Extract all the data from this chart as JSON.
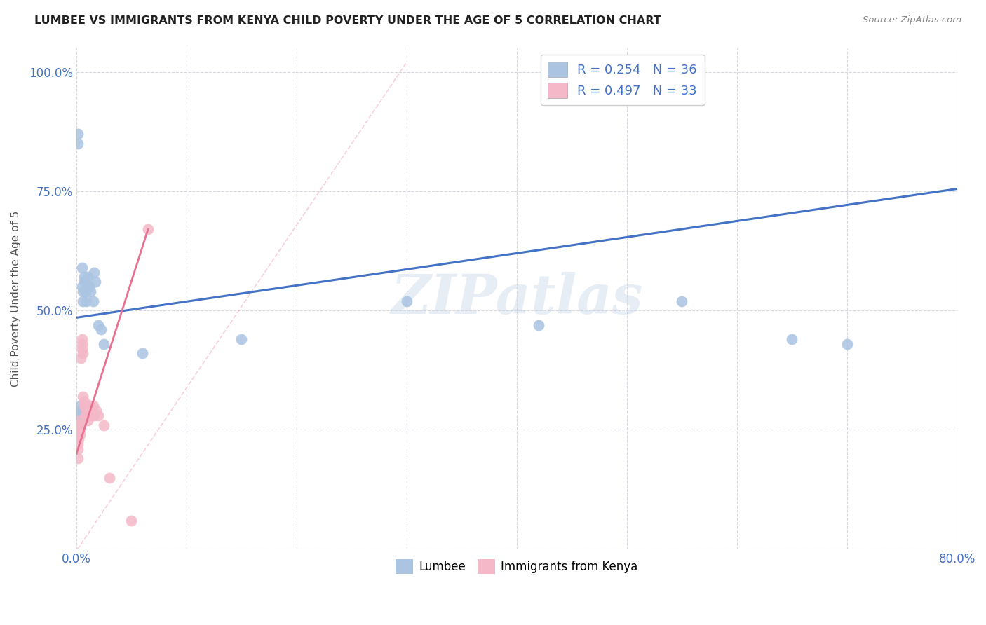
{
  "title": "LUMBEE VS IMMIGRANTS FROM KENYA CHILD POVERTY UNDER THE AGE OF 5 CORRELATION CHART",
  "source": "Source: ZipAtlas.com",
  "ylabel": "Child Poverty Under the Age of 5",
  "xlim": [
    0.0,
    0.8
  ],
  "ylim": [
    0.0,
    1.05
  ],
  "xtick_pos": [
    0.0,
    0.1,
    0.2,
    0.3,
    0.4,
    0.5,
    0.6,
    0.7,
    0.8
  ],
  "xticklabels": [
    "0.0%",
    "",
    "",
    "",
    "",
    "",
    "",
    "",
    "80.0%"
  ],
  "ytick_pos": [
    0.0,
    0.25,
    0.5,
    0.75,
    1.0
  ],
  "yticklabels": [
    "",
    "25.0%",
    "50.0%",
    "75.0%",
    "100.0%"
  ],
  "lumbee_R": 0.254,
  "lumbee_N": 36,
  "kenya_R": 0.497,
  "kenya_N": 33,
  "lumbee_color": "#aac4e2",
  "kenya_color": "#f4b8c8",
  "lumbee_line_color": "#4472c4",
  "kenya_line_color": "#e87090",
  "watermark": "ZIPatlas",
  "lumbee_x": [
    0.001,
    0.001,
    0.001,
    0.002,
    0.002,
    0.003,
    0.003,
    0.003,
    0.004,
    0.004,
    0.004,
    0.005,
    0.005,
    0.006,
    0.006,
    0.007,
    0.007,
    0.008,
    0.009,
    0.01,
    0.01,
    0.012,
    0.013,
    0.015,
    0.016,
    0.017,
    0.02,
    0.022,
    0.025,
    0.06,
    0.15,
    0.3,
    0.42,
    0.55,
    0.65,
    0.7
  ],
  "lumbee_y": [
    0.85,
    0.87,
    0.27,
    0.26,
    0.28,
    0.3,
    0.28,
    0.26,
    0.29,
    0.27,
    0.28,
    0.59,
    0.55,
    0.54,
    0.52,
    0.56,
    0.57,
    0.54,
    0.52,
    0.57,
    0.55,
    0.55,
    0.54,
    0.52,
    0.58,
    0.56,
    0.47,
    0.46,
    0.43,
    0.41,
    0.44,
    0.52,
    0.47,
    0.52,
    0.44,
    0.43
  ],
  "kenya_x": [
    0.001,
    0.001,
    0.001,
    0.001,
    0.002,
    0.002,
    0.002,
    0.003,
    0.003,
    0.003,
    0.004,
    0.004,
    0.005,
    0.005,
    0.005,
    0.006,
    0.006,
    0.007,
    0.007,
    0.008,
    0.008,
    0.009,
    0.01,
    0.012,
    0.013,
    0.015,
    0.016,
    0.018,
    0.02,
    0.025,
    0.03,
    0.05,
    0.065
  ],
  "kenya_y": [
    0.19,
    0.21,
    0.22,
    0.24,
    0.23,
    0.25,
    0.26,
    0.24,
    0.27,
    0.25,
    0.26,
    0.4,
    0.42,
    0.43,
    0.44,
    0.41,
    0.32,
    0.3,
    0.31,
    0.28,
    0.3,
    0.29,
    0.27,
    0.3,
    0.28,
    0.3,
    0.28,
    0.29,
    0.28,
    0.26,
    0.15,
    0.06,
    0.67
  ]
}
